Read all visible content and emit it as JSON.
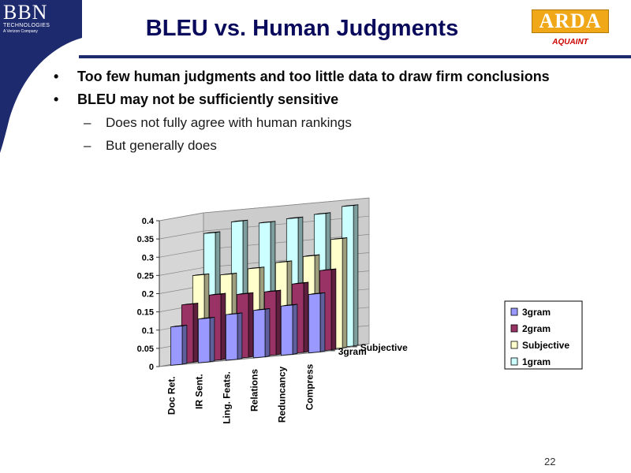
{
  "slide": {
    "title": "BLEU vs. Human Judgments",
    "page_number": "22"
  },
  "logos": {
    "bbn": {
      "letters": "BBN",
      "line1": "TECHNOLOGIES",
      "line2": "A Verizon Company"
    },
    "arda": {
      "name": "ARDA",
      "tagline": "AQUAINT"
    }
  },
  "bullets": [
    {
      "dot": "•",
      "text": "Too few human judgments and too little data to draw firm conclusions"
    },
    {
      "dot": "•",
      "text": "BLEU may not be sufficiently sensitive",
      "subs": [
        {
          "dash": "–",
          "text": "Does not fully agree with human rankings"
        },
        {
          "dash": "–",
          "text": "But generally does"
        }
      ]
    }
  ],
  "colors": {
    "navy": "#1e2a6e",
    "title": "#0a0a5c",
    "arda_gold": "#f0a818",
    "aquaint_red": "#cc0000"
  },
  "chart_data": {
    "type": "bar",
    "subtype": "3d-column-grouped-by-depth",
    "categories": [
      "Doc Ret.",
      "IR Sent.",
      "Ling. Feats.",
      "Relations",
      "Reduncancy",
      "Compress"
    ],
    "depth_labels": [
      "3gram",
      "Subjective"
    ],
    "series": [
      {
        "name": "3gram",
        "color": "#9999ff",
        "values": [
          0.105,
          0.12,
          0.125,
          0.13,
          0.135,
          0.16
        ]
      },
      {
        "name": "2gram",
        "color": "#993366",
        "values": [
          0.16,
          0.18,
          0.175,
          0.175,
          0.19,
          0.22
        ]
      },
      {
        "name": "Subjective",
        "color": "#ffffcc",
        "values": [
          0.235,
          0.23,
          0.24,
          0.25,
          0.26,
          0.3
        ]
      },
      {
        "name": "1gram",
        "color": "#ccffff",
        "values": [
          0.345,
          0.37,
          0.36,
          0.365,
          0.37,
          0.385
        ]
      }
    ],
    "ylim": [
      0,
      0.4
    ],
    "yticks": [
      "0",
      "0.05",
      "0.1",
      "0.15",
      "0.2",
      "0.25",
      "0.3",
      "0.35",
      "0.4"
    ],
    "grid": true,
    "legend_position": "right"
  }
}
